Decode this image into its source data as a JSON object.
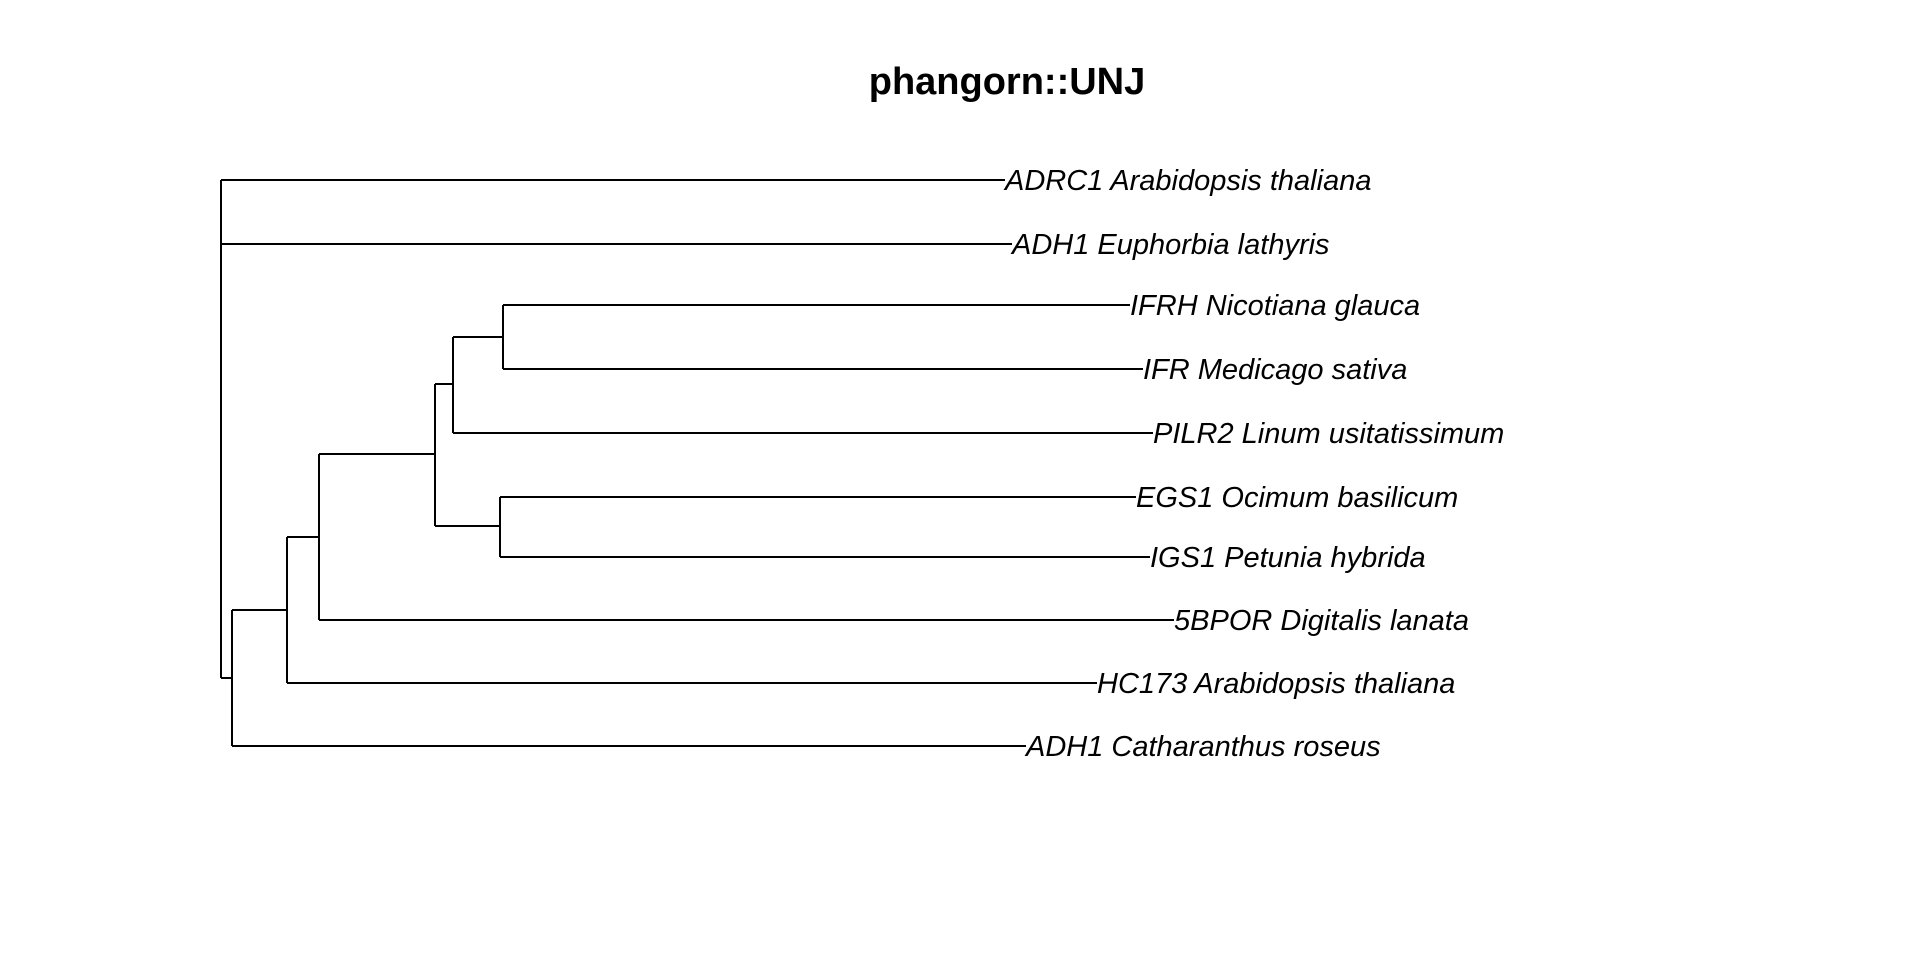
{
  "title": "phangorn::UNJ",
  "tree": {
    "edge_color": "#000000",
    "text_color": "#000000",
    "tips": [
      {
        "id": "t1",
        "label": "ADRC1 Arabidopsis thaliana"
      },
      {
        "id": "t2",
        "label": "ADH1 Euphorbia lathyris"
      },
      {
        "id": "t3",
        "label": "IFRH Nicotiana glauca"
      },
      {
        "id": "t4",
        "label": "IFR Medicago sativa"
      },
      {
        "id": "t5",
        "label": "PILR2 Linum usitatissimum"
      },
      {
        "id": "t6",
        "label": "EGS1 Ocimum basilicum"
      },
      {
        "id": "t7",
        "label": "IGS1 Petunia hybrida"
      },
      {
        "id": "t8",
        "label": "5BPOR Digitalis lanata"
      },
      {
        "id": "t9",
        "label": "HC173 Arabidopsis thaliana"
      },
      {
        "id": "t10",
        "label": "ADH1 Catharanthus roseus"
      }
    ]
  }
}
